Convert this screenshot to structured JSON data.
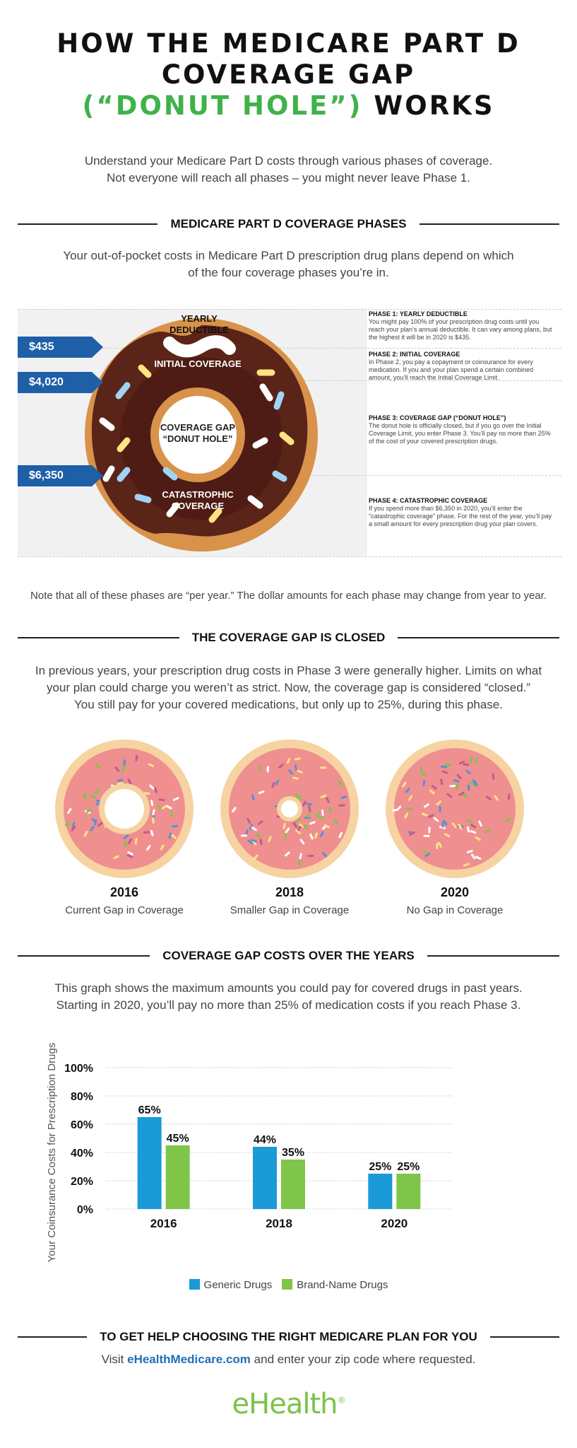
{
  "title": {
    "line1": "HOW THE MEDICARE PART D",
    "line2": "COVERAGE GAP",
    "line3_green": "(“DONUT HOLE”)",
    "line3_rest": "WORKS"
  },
  "intro": {
    "line1": "Understand your Medicare Part D costs through various phases of coverage.",
    "line2": "Not everyone will reach all phases – you might never leave Phase 1."
  },
  "section1": {
    "heading": "MEDICARE PART D COVERAGE PHASES",
    "text_line1": "Your out-of-pocket costs in Medicare Part D prescription drug plans depend on which",
    "text_line2": "of the four coverage phases you’re in.",
    "price_tags": [
      "$435",
      "$4,020",
      "$6,350"
    ],
    "donut_labels": {
      "deductible": "YEARLY DEDUCTIBLE",
      "initial": "INITIAL COVERAGE",
      "gap": "COVERAGE GAP “DONUT HOLE”",
      "catastrophic": "CATASTROPHIC COVERAGE"
    },
    "phases": [
      {
        "heading": "PHASE 1: YEARLY DEDUCTIBLE",
        "text": "You might pay 100% of your prescription drug costs until you reach your plan’s annual deductible. It can vary among plans, but the highest it will be in 2020 is $435."
      },
      {
        "heading": "PHASE 2: INITIAL COVERAGE",
        "text": "In Phase 2, you pay a copayment or coinsurance for every medication. If you and your plan spend a certain combined amount, you’ll reach the Initial Coverage Limit."
      },
      {
        "heading": "PHASE 3: COVERAGE GAP (“DONUT HOLE”)",
        "text": "The donut hole is officially closed, but if you go over the Initial Coverage Limit, you enter Phase 3. You’ll pay no more than 25% of the cost of your covered prescription drugs."
      },
      {
        "heading": "PHASE 4: CATASTROPHIC COVERAGE",
        "text": "If you spend more than $6,350 in 2020, you’ll enter the “catastrophic coverage” phase. For the rest of the year, you’ll pay a small amount for every prescription drug your plan covers."
      }
    ],
    "note": "Note that all of these phases are “per year.” The dollar amounts for each phase may change from year to year."
  },
  "section2": {
    "heading": "THE COVERAGE GAP IS CLOSED",
    "text_line1": "In previous years, your prescription drug costs in Phase 3 were generally higher. Limits on what",
    "text_line2": "your plan could charge you weren’t as strict. Now, the coverage gap is considered “closed.”",
    "text_line3": "You still pay for your covered medications, but only up to 25%, during this phase.",
    "donuts": [
      {
        "year": "2016",
        "label": "Current Gap in Coverage"
      },
      {
        "year": "2018",
        "label": "Smaller Gap in Coverage"
      },
      {
        "year": "2020",
        "label": "No Gap in Coverage"
      }
    ]
  },
  "section3": {
    "heading": "COVERAGE GAP COSTS OVER THE YEARS",
    "text_line1": "This graph shows the maximum amounts you could pay for covered drugs in past years.",
    "text_line2": "Starting in 2020, you’ll pay no more than 25% of medication costs if you reach Phase 3."
  },
  "chart_data": {
    "type": "bar",
    "categories": [
      "2016",
      "2018",
      "2020"
    ],
    "series": [
      {
        "name": "Generic Drugs",
        "values": [
          65,
          44,
          25
        ],
        "color": "#1a9ad6"
      },
      {
        "name": "Brand-Name Drugs",
        "values": [
          45,
          35,
          25
        ],
        "color": "#7ec54a"
      }
    ],
    "ylabel": "Your Coinsurance Costs for Prescription Drugs",
    "ylim": [
      0,
      100
    ],
    "yticks": [
      "0%",
      "20%",
      "40%",
      "60%",
      "80%",
      "100%"
    ],
    "value_labels": [
      [
        "65%",
        "44%",
        "25%"
      ],
      [
        "45%",
        "35%",
        "25%"
      ]
    ],
    "legend_position": "bottom",
    "grid": true
  },
  "footer": {
    "heading": "TO GET HELP CHOOSING THE RIGHT MEDICARE PLAN FOR YOU",
    "visit": "Visit",
    "link": "eHealthMedicare.com",
    "rest": "and enter your zip code where requested.",
    "logo": "eHealth",
    "logo_mark": "®"
  }
}
